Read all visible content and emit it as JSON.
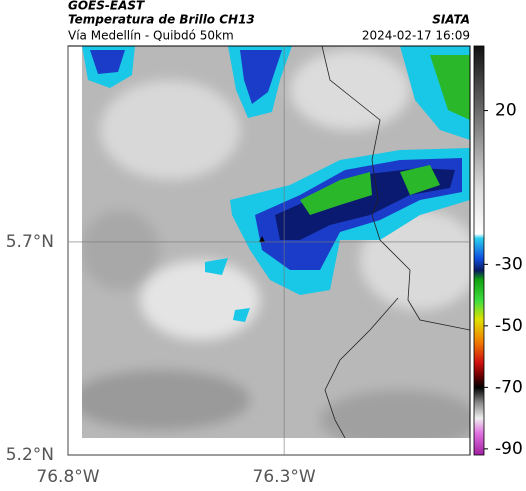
{
  "header": {
    "source": "GOES-EAST",
    "title": "Temperatura de Brillo CH13",
    "subtitle": "Vía Medellín - Quibdó 50km",
    "agency": "SIATA",
    "timestamp": "2024-02-17 16:09"
  },
  "map": {
    "xlim": [
      -76.8,
      -75.87
    ],
    "ylim": [
      5.2,
      6.16
    ],
    "xticks": [
      {
        "value": -76.8,
        "label": "76.8°W"
      },
      {
        "value": -76.3,
        "label": "76.3°W"
      }
    ],
    "yticks": [
      {
        "value": 5.2,
        "label": "5.2°N"
      },
      {
        "value": 5.7,
        "label": "5.7°N"
      }
    ],
    "grid": true
  },
  "colorbar": {
    "lim": [
      -92,
      41
    ],
    "ticks": [
      20,
      -30,
      -50,
      -70,
      -90
    ]
  }
}
